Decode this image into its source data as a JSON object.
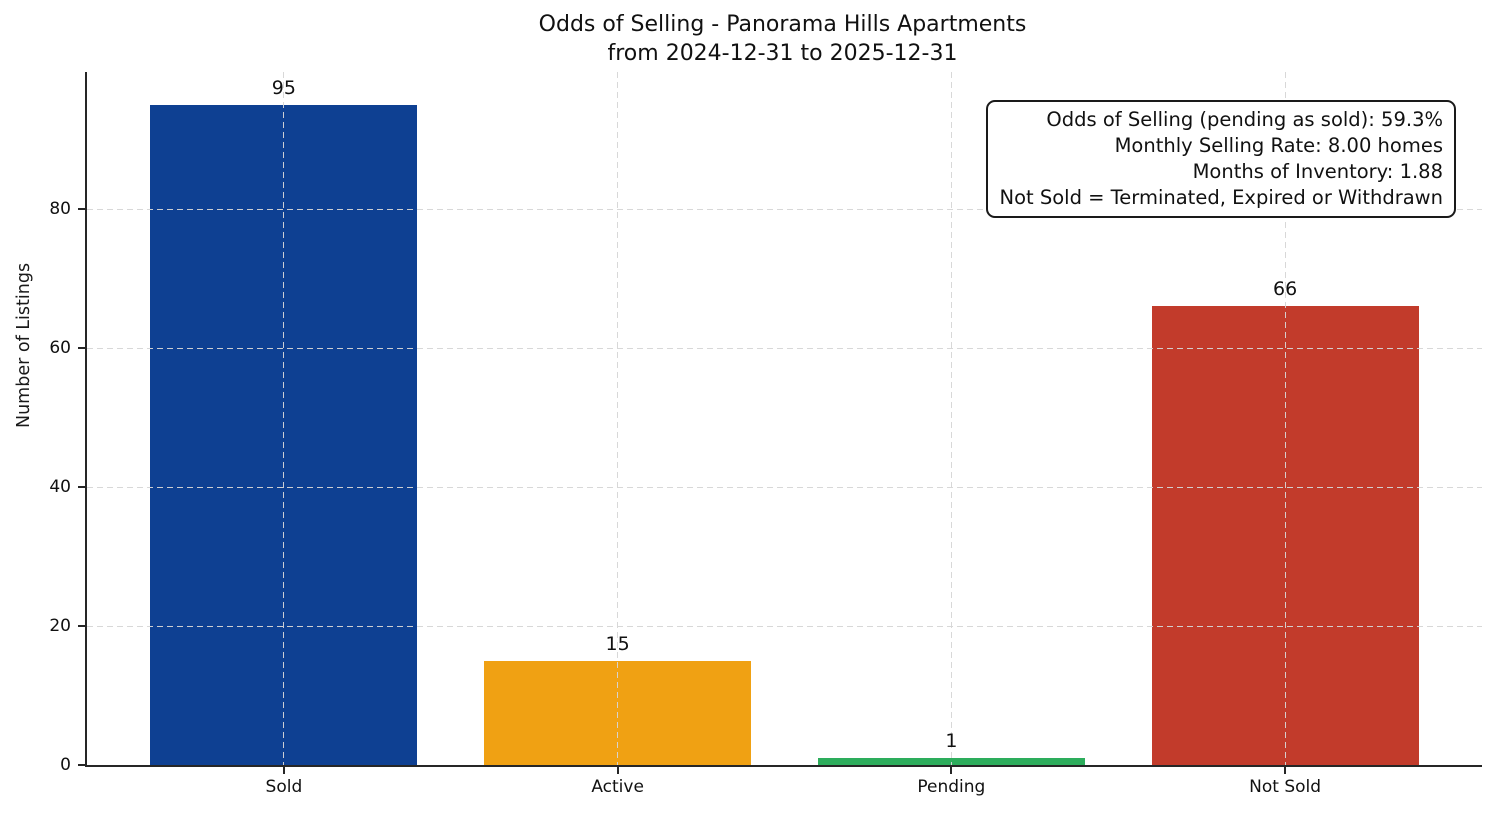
{
  "title": {
    "line1": "Odds of Selling - Panorama Hills Apartments",
    "line2": "from 2024-12-31 to 2025-12-31"
  },
  "chart_data": {
    "type": "bar",
    "categories": [
      "Sold",
      "Active",
      "Pending",
      "Not Sold"
    ],
    "values": [
      95,
      15,
      1,
      66
    ],
    "value_labels": [
      "95",
      "15",
      "1",
      "66"
    ],
    "bar_colors": [
      "#0e4092",
      "#f0a113",
      "#2dad5c",
      "#c23b2b"
    ],
    "title": "Odds of Selling - Panorama Hills Apartments\nfrom 2024-12-31 to 2025-12-31",
    "xlabel": "",
    "ylabel": "Number of Listings",
    "yticks": [
      0,
      20,
      40,
      60,
      80
    ],
    "ylim": [
      0,
      99.75
    ],
    "grid": true,
    "grid_style": "dashed",
    "legend": "none",
    "annotation": {
      "position": "top-right",
      "lines": [
        "Odds of Selling (pending as sold): 59.3%",
        "Monthly Selling Rate: 8.00 homes",
        "Months of Inventory: 1.88",
        "Not Sold = Terminated, Expired or Withdrawn"
      ]
    }
  }
}
